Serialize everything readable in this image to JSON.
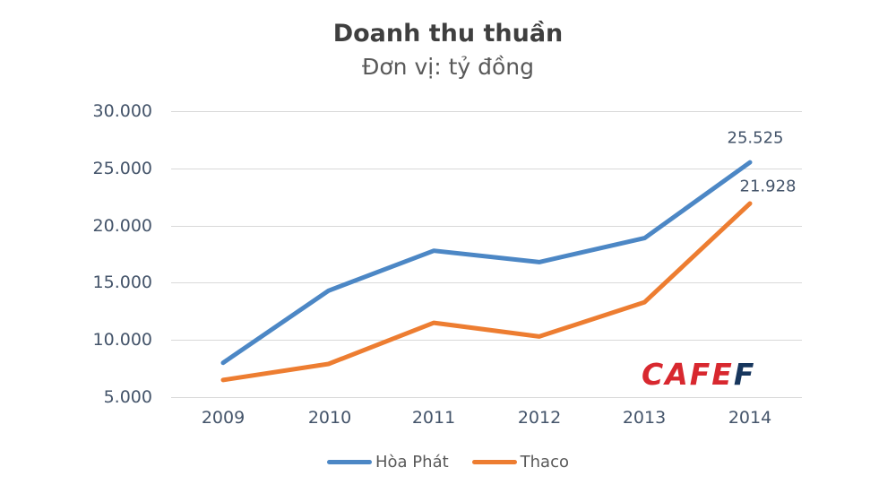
{
  "title": "Doanh thu thuần",
  "subtitle": "Đơn vị: tỷ đồng",
  "watermark": {
    "text_red": "CAFE",
    "text_blue": "F",
    "color_red": "#d8282f",
    "color_blue": "#17365d"
  },
  "chart_data": {
    "type": "line",
    "title": "Doanh thu thuần",
    "subtitle": "Đơn vị: tỷ đồng",
    "unit": "tỷ đồng",
    "categories": [
      "2009",
      "2010",
      "2011",
      "2012",
      "2013",
      "2014"
    ],
    "series": [
      {
        "name": "Hòa Phát",
        "color": "#4c87c5",
        "values": [
          8000,
          14300,
          17800,
          16800,
          18900,
          25525
        ],
        "end_label": "25.525"
      },
      {
        "name": "Thaco",
        "color": "#ed7d31",
        "values": [
          6500,
          7900,
          11500,
          10300,
          13300,
          21928
        ],
        "end_label": "21.928"
      }
    ],
    "y_ticks": [
      "30.000",
      "25.000",
      "20.000",
      "15.000",
      "10.000",
      "5.000"
    ],
    "ylim": [
      5000,
      30000
    ],
    "grid": true,
    "gridline_color": "#d9d9d9",
    "legend_position": "bottom"
  }
}
